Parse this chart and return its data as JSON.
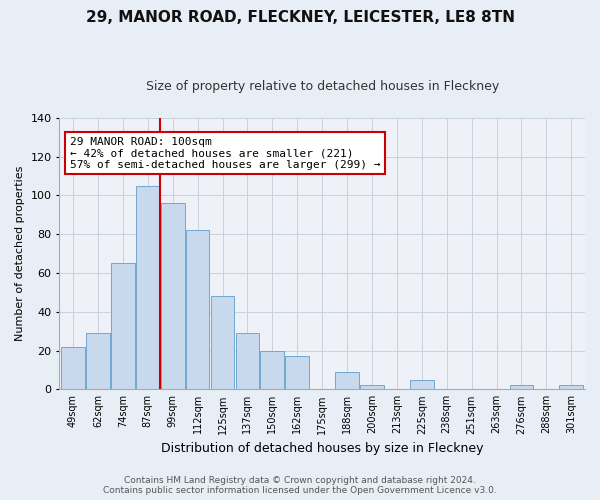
{
  "title": "29, MANOR ROAD, FLECKNEY, LEICESTER, LE8 8TN",
  "subtitle": "Size of property relative to detached houses in Fleckney",
  "xlabel": "Distribution of detached houses by size in Fleckney",
  "ylabel": "Number of detached properties",
  "categories": [
    "49sqm",
    "62sqm",
    "74sqm",
    "87sqm",
    "99sqm",
    "112sqm",
    "125sqm",
    "137sqm",
    "150sqm",
    "162sqm",
    "175sqm",
    "188sqm",
    "200sqm",
    "213sqm",
    "225sqm",
    "238sqm",
    "251sqm",
    "263sqm",
    "276sqm",
    "288sqm",
    "301sqm"
  ],
  "values": [
    22,
    29,
    65,
    105,
    96,
    82,
    48,
    29,
    20,
    17,
    0,
    9,
    2,
    0,
    5,
    0,
    0,
    0,
    2,
    0,
    2
  ],
  "bar_color": "#c8d9ed",
  "bar_edge_color": "#6fa8d0",
  "highlight_edge_color": "#cc0000",
  "ylim": [
    0,
    140
  ],
  "yticks": [
    0,
    20,
    40,
    60,
    80,
    100,
    120,
    140
  ],
  "annotation_box_text": "29 MANOR ROAD: 100sqm\n← 42% of detached houses are smaller (221)\n57% of semi-detached houses are larger (299) →",
  "annotation_box_edge_color": "#cc0000",
  "annotation_box_facecolor": "#ffffff",
  "footer_line1": "Contains HM Land Registry data © Crown copyright and database right 2024.",
  "footer_line2": "Contains public sector information licensed under the Open Government Licence v3.0.",
  "background_color": "#e8eef5",
  "plot_bg_color": "#eef2f8",
  "grid_color": "#c8d0dc",
  "vline_x_index": 4,
  "title_fontsize": 11,
  "subtitle_fontsize": 9
}
